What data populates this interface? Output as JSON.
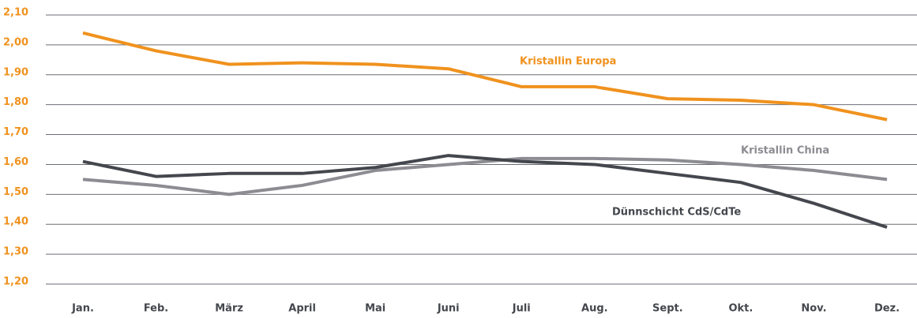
{
  "chart_data": {
    "type": "line",
    "categories": [
      "Jan.",
      "Feb.",
      "März",
      "April",
      "Mai",
      "Juni",
      "Juli",
      "Aug.",
      "Sept.",
      "Okt.",
      "Nov.",
      "Dez."
    ],
    "series": [
      {
        "name": "Kristallin Europa",
        "color": "#f0921e",
        "values": [
          2.04,
          1.98,
          1.935,
          1.94,
          1.935,
          1.92,
          1.86,
          1.86,
          1.82,
          1.815,
          1.8,
          1.75
        ]
      },
      {
        "name": "Kristallin China",
        "color": "#8c8c92",
        "values": [
          1.55,
          1.53,
          1.5,
          1.53,
          1.58,
          1.6,
          1.62,
          1.62,
          1.615,
          1.6,
          1.58,
          1.55
        ]
      },
      {
        "name": "Dünnschicht CdS/CdTe",
        "color": "#44474d",
        "values": [
          1.61,
          1.56,
          1.57,
          1.57,
          1.59,
          1.63,
          1.61,
          1.6,
          1.57,
          1.54,
          1.47,
          1.39
        ]
      }
    ],
    "ylim": [
      1.2,
      2.1
    ],
    "yticks": [
      {
        "value": 1.2,
        "label": "1,20"
      },
      {
        "value": 1.3,
        "label": "1,30"
      },
      {
        "value": 1.4,
        "label": "1,40"
      },
      {
        "value": 1.5,
        "label": "1,50"
      },
      {
        "value": 1.6,
        "label": "1,60"
      },
      {
        "value": 1.7,
        "label": "1,70"
      },
      {
        "value": 1.8,
        "label": "1,80"
      },
      {
        "value": 1.9,
        "label": "1,90"
      },
      {
        "value": 2.0,
        "label": "2,00"
      },
      {
        "value": 2.1,
        "label": "2,10"
      }
    ],
    "grid": true
  }
}
